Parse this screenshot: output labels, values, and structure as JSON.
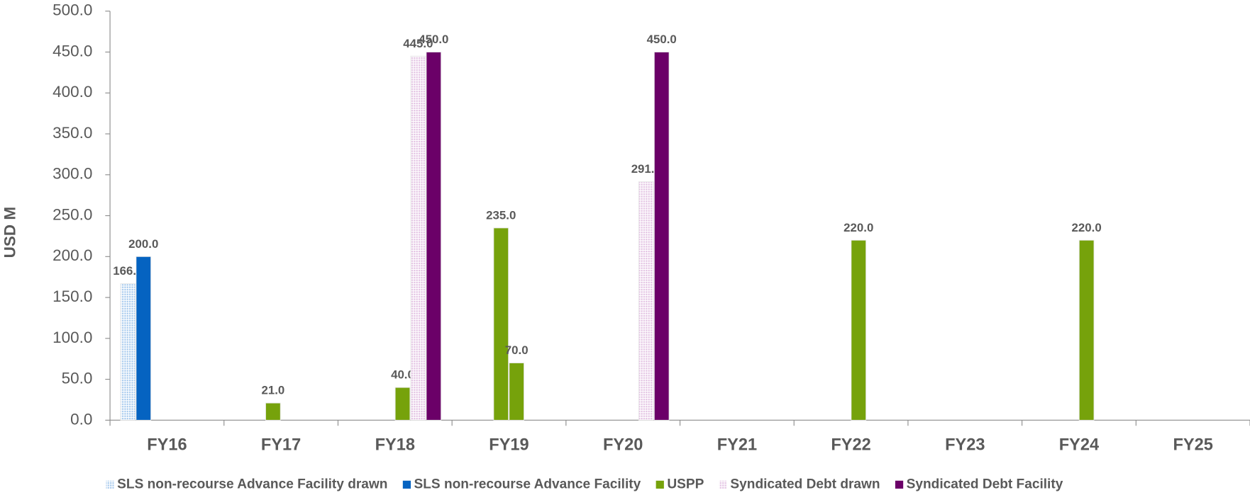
{
  "chart_data": {
    "type": "bar",
    "ylabel": "USD M",
    "categories": [
      "FY16",
      "FY17",
      "FY18",
      "FY19",
      "FY20",
      "FY21",
      "FY22",
      "FY23",
      "FY24",
      "FY25"
    ],
    "ylim": [
      0,
      500
    ],
    "yticks": [
      {
        "value": 0,
        "label": "0.0"
      },
      {
        "value": 50,
        "label": "50.0"
      },
      {
        "value": 100,
        "label": "100.0"
      },
      {
        "value": 150,
        "label": "150.0"
      },
      {
        "value": 200,
        "label": "200.0"
      },
      {
        "value": 250,
        "label": "250.0"
      },
      {
        "value": 300,
        "label": "300.0"
      },
      {
        "value": 350,
        "label": "350.0"
      },
      {
        "value": 400,
        "label": "400.0"
      },
      {
        "value": 450,
        "label": "450.0"
      },
      {
        "value": 500,
        "label": "500.0"
      }
    ],
    "legend": "bottom",
    "series": [
      {
        "name": "SLS non-recourse Advance Facility drawn",
        "color": "#a9cbee",
        "pattern": "dots",
        "values": [
          166.9,
          null,
          null,
          null,
          null,
          null,
          null,
          null,
          null,
          null
        ],
        "value_labels": [
          "166.9",
          null,
          null,
          null,
          null,
          null,
          null,
          null,
          null,
          null
        ]
      },
      {
        "name": "SLS non-recourse Advance Facility",
        "color": "#0563c1",
        "values": [
          200,
          null,
          null,
          null,
          null,
          null,
          null,
          null,
          null,
          null
        ],
        "value_labels": [
          "200.0",
          null,
          null,
          null,
          null,
          null,
          null,
          null,
          null,
          null
        ]
      },
      {
        "name": "USPP",
        "color": "#76a20b",
        "values": [
          null,
          21,
          null,
          235,
          null,
          null,
          null,
          null,
          null,
          null
        ],
        "value_labels": [
          null,
          "21.0",
          null,
          "235.0",
          null,
          null,
          null,
          null,
          null,
          null
        ]
      },
      {
        "color": "#76a20b",
        "values": [
          null,
          null,
          40,
          70,
          null,
          null,
          220,
          null,
          220,
          null
        ],
        "value_labels": [
          null,
          null,
          "40.0",
          "70.0",
          null,
          null,
          "220.0",
          null,
          "220.0",
          null
        ]
      },
      {
        "name": "Syndicated Debt drawn",
        "color": "#e3c3e3",
        "pattern": "dots",
        "values": [
          null,
          null,
          445,
          null,
          291.5,
          null,
          null,
          null,
          null,
          null
        ],
        "value_labels": [
          null,
          null,
          "445.0",
          null,
          "291.5",
          null,
          null,
          null,
          null,
          null
        ]
      },
      {
        "name": "Syndicated Debt Facility",
        "color": "#6b0068",
        "values": [
          null,
          null,
          450,
          null,
          450,
          null,
          null,
          null,
          null,
          null
        ],
        "value_labels": [
          null,
          null,
          "450.0",
          null,
          "450.0",
          null,
          null,
          null,
          null,
          null
        ]
      }
    ]
  }
}
